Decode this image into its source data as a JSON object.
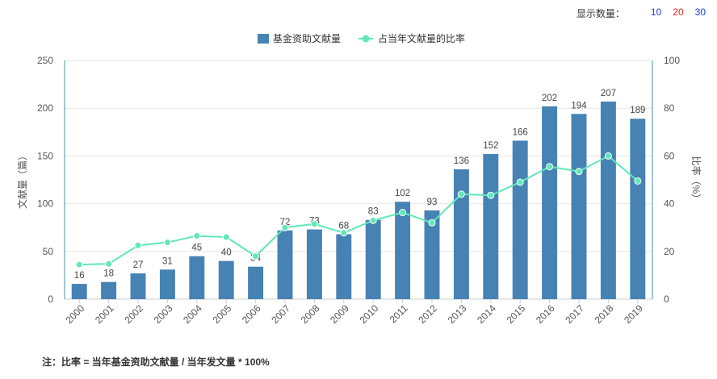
{
  "controls": {
    "label": "显示数量：",
    "options": [
      {
        "value": "10",
        "color": "#1a3fd1"
      },
      {
        "value": "20",
        "color": "#e02020"
      },
      {
        "value": "30",
        "color": "#1a3fd1"
      }
    ]
  },
  "footnote": "注：比率 = 当年基金资助文献量 / 当年发文量 * 100%",
  "chart_data": {
    "type": "bar",
    "categories": [
      "2000",
      "2001",
      "2002",
      "2003",
      "2004",
      "2005",
      "2006",
      "2007",
      "2008",
      "2009",
      "2010",
      "2011",
      "2012",
      "2013",
      "2014",
      "2015",
      "2016",
      "2017",
      "2018",
      "2019"
    ],
    "series": [
      {
        "name": "基金资助文献量",
        "type": "bar",
        "axis": "left",
        "color": "#4682b4",
        "values": [
          16,
          18,
          27,
          31,
          45,
          40,
          34,
          72,
          73,
          68,
          83,
          102,
          93,
          136,
          152,
          166,
          202,
          194,
          207,
          189
        ]
      },
      {
        "name": "占当年文献量的比率",
        "type": "line",
        "axis": "right",
        "color": "#5fe8b8",
        "values": [
          14.5,
          14.8,
          22.5,
          23.8,
          26.5,
          26,
          18,
          30,
          31.5,
          27.8,
          33,
          36.3,
          32,
          44,
          43.5,
          49,
          55.5,
          53.5,
          60,
          49.5
        ]
      }
    ],
    "ylabel": "文献量（篇）",
    "y2label": "比率（%）",
    "ylim": [
      0,
      250
    ],
    "y2lim": [
      0,
      100
    ],
    "yticks": [
      0,
      50,
      100,
      150,
      200,
      250
    ],
    "y2ticks": [
      0,
      20,
      40,
      60,
      80,
      100
    ],
    "grid": true,
    "legend": "top-center"
  }
}
